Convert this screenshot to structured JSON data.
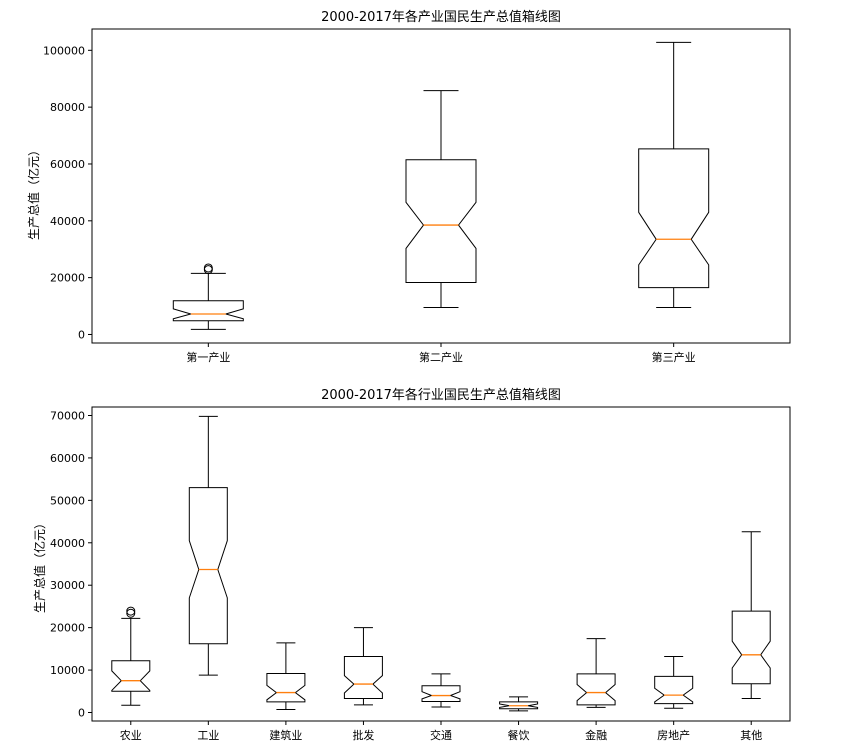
{
  "chart_data": [
    {
      "type": "boxplot",
      "title": "2000-2017年各产业国民生产总值箱线图",
      "ylabel": "生产总值（亿元）",
      "ylim": [
        -3000,
        107500
      ],
      "yticks": [
        0,
        20000,
        40000,
        60000,
        80000,
        100000
      ],
      "notched": true,
      "categories": [
        "第一产业",
        "第二产业",
        "第三产业"
      ],
      "boxes": [
        {
          "name": "第一产业",
          "whislo": 1800,
          "q1": 4800,
          "med": 7200,
          "q3": 11900,
          "whishi": 21500,
          "notch_lo": 5500,
          "notch_hi": 9000,
          "fliers": [
            22800,
            23400
          ]
        },
        {
          "name": "第二产业",
          "whislo": 9500,
          "q1": 18300,
          "med": 38500,
          "q3": 61500,
          "whishi": 85800,
          "notch_lo": 30300,
          "notch_hi": 46500,
          "fliers": []
        },
        {
          "name": "第三产业",
          "whislo": 9500,
          "q1": 16500,
          "med": 33500,
          "q3": 65300,
          "whishi": 102800,
          "notch_lo": 24500,
          "notch_hi": 43000,
          "fliers": []
        }
      ]
    },
    {
      "type": "boxplot",
      "title": "2000-2017年各行业国民生产总值箱线图",
      "ylabel": "生产总值（亿元）",
      "ylim": [
        -2000,
        72000
      ],
      "yticks": [
        0,
        10000,
        20000,
        30000,
        40000,
        50000,
        60000,
        70000
      ],
      "notched": true,
      "categories": [
        "农业",
        "工业",
        "建筑业",
        "批发",
        "交通",
        "餐饮",
        "金融",
        "房地产",
        "其他"
      ],
      "boxes": [
        {
          "name": "农业",
          "whislo": 1700,
          "q1": 5000,
          "med": 7500,
          "q3": 12200,
          "whishi": 22200,
          "notch_lo": 5200,
          "notch_hi": 9800,
          "fliers": [
            23400,
            23900
          ]
        },
        {
          "name": "工业",
          "whislo": 8800,
          "q1": 16200,
          "med": 33700,
          "q3": 53000,
          "whishi": 69800,
          "notch_lo": 27000,
          "notch_hi": 40500,
          "fliers": []
        },
        {
          "name": "建筑业",
          "whislo": 700,
          "q1": 2500,
          "med": 4700,
          "q3": 9200,
          "whishi": 16400,
          "notch_lo": 3000,
          "notch_hi": 6400,
          "fliers": []
        },
        {
          "name": "批发",
          "whislo": 1800,
          "q1": 3300,
          "med": 6700,
          "q3": 13200,
          "whishi": 20000,
          "notch_lo": 4600,
          "notch_hi": 8700,
          "fliers": []
        },
        {
          "name": "交通",
          "whislo": 1300,
          "q1": 2600,
          "med": 4000,
          "q3": 6300,
          "whishi": 9100,
          "notch_lo": 3200,
          "notch_hi": 4900,
          "fliers": []
        },
        {
          "name": "餐饮",
          "whislo": 400,
          "q1": 900,
          "med": 1600,
          "q3": 2500,
          "whishi": 3700,
          "notch_lo": 1200,
          "notch_hi": 2000,
          "fliers": []
        },
        {
          "name": "金融",
          "whislo": 1200,
          "q1": 1800,
          "med": 4700,
          "q3": 9100,
          "whishi": 17400,
          "notch_lo": 2800,
          "notch_hi": 6600,
          "fliers": []
        },
        {
          "name": "房地产",
          "whislo": 1000,
          "q1": 2100,
          "med": 4100,
          "q3": 8500,
          "whishi": 13200,
          "notch_lo": 2500,
          "notch_hi": 5700,
          "fliers": []
        },
        {
          "name": "其他",
          "whislo": 3300,
          "q1": 6800,
          "med": 13600,
          "q3": 23900,
          "whishi": 42600,
          "notch_lo": 10500,
          "notch_hi": 16800,
          "fliers": []
        }
      ]
    }
  ]
}
